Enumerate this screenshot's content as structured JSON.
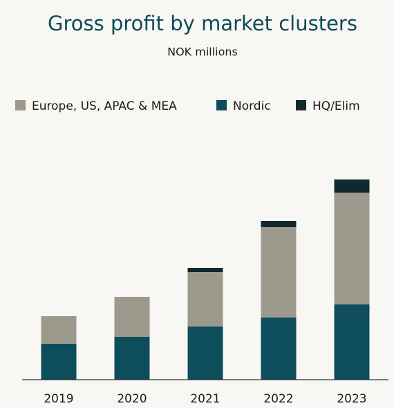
{
  "chart_data": {
    "type": "stacked_bar",
    "title": "Gross profit by market clusters",
    "subtitle": "NOK millions",
    "categories": [
      "2019",
      "2020",
      "2021",
      "2022",
      "2023"
    ],
    "series": [
      {
        "name": "Europe, US, APAC & MEA",
        "color": "#9b9a8c",
        "values": [
          400,
          580,
          790,
          1310,
          1620
        ]
      },
      {
        "name": "Nordic",
        "color": "#0d4d5c",
        "values": [
          520,
          620,
          770,
          900,
          1090
        ]
      },
      {
        "name": "HQ/Elim",
        "color": "#10282e",
        "values": [
          0,
          0,
          60,
          90,
          190
        ]
      }
    ],
    "ylim": [
      0,
      3500
    ],
    "grid": false,
    "legend": "top"
  }
}
